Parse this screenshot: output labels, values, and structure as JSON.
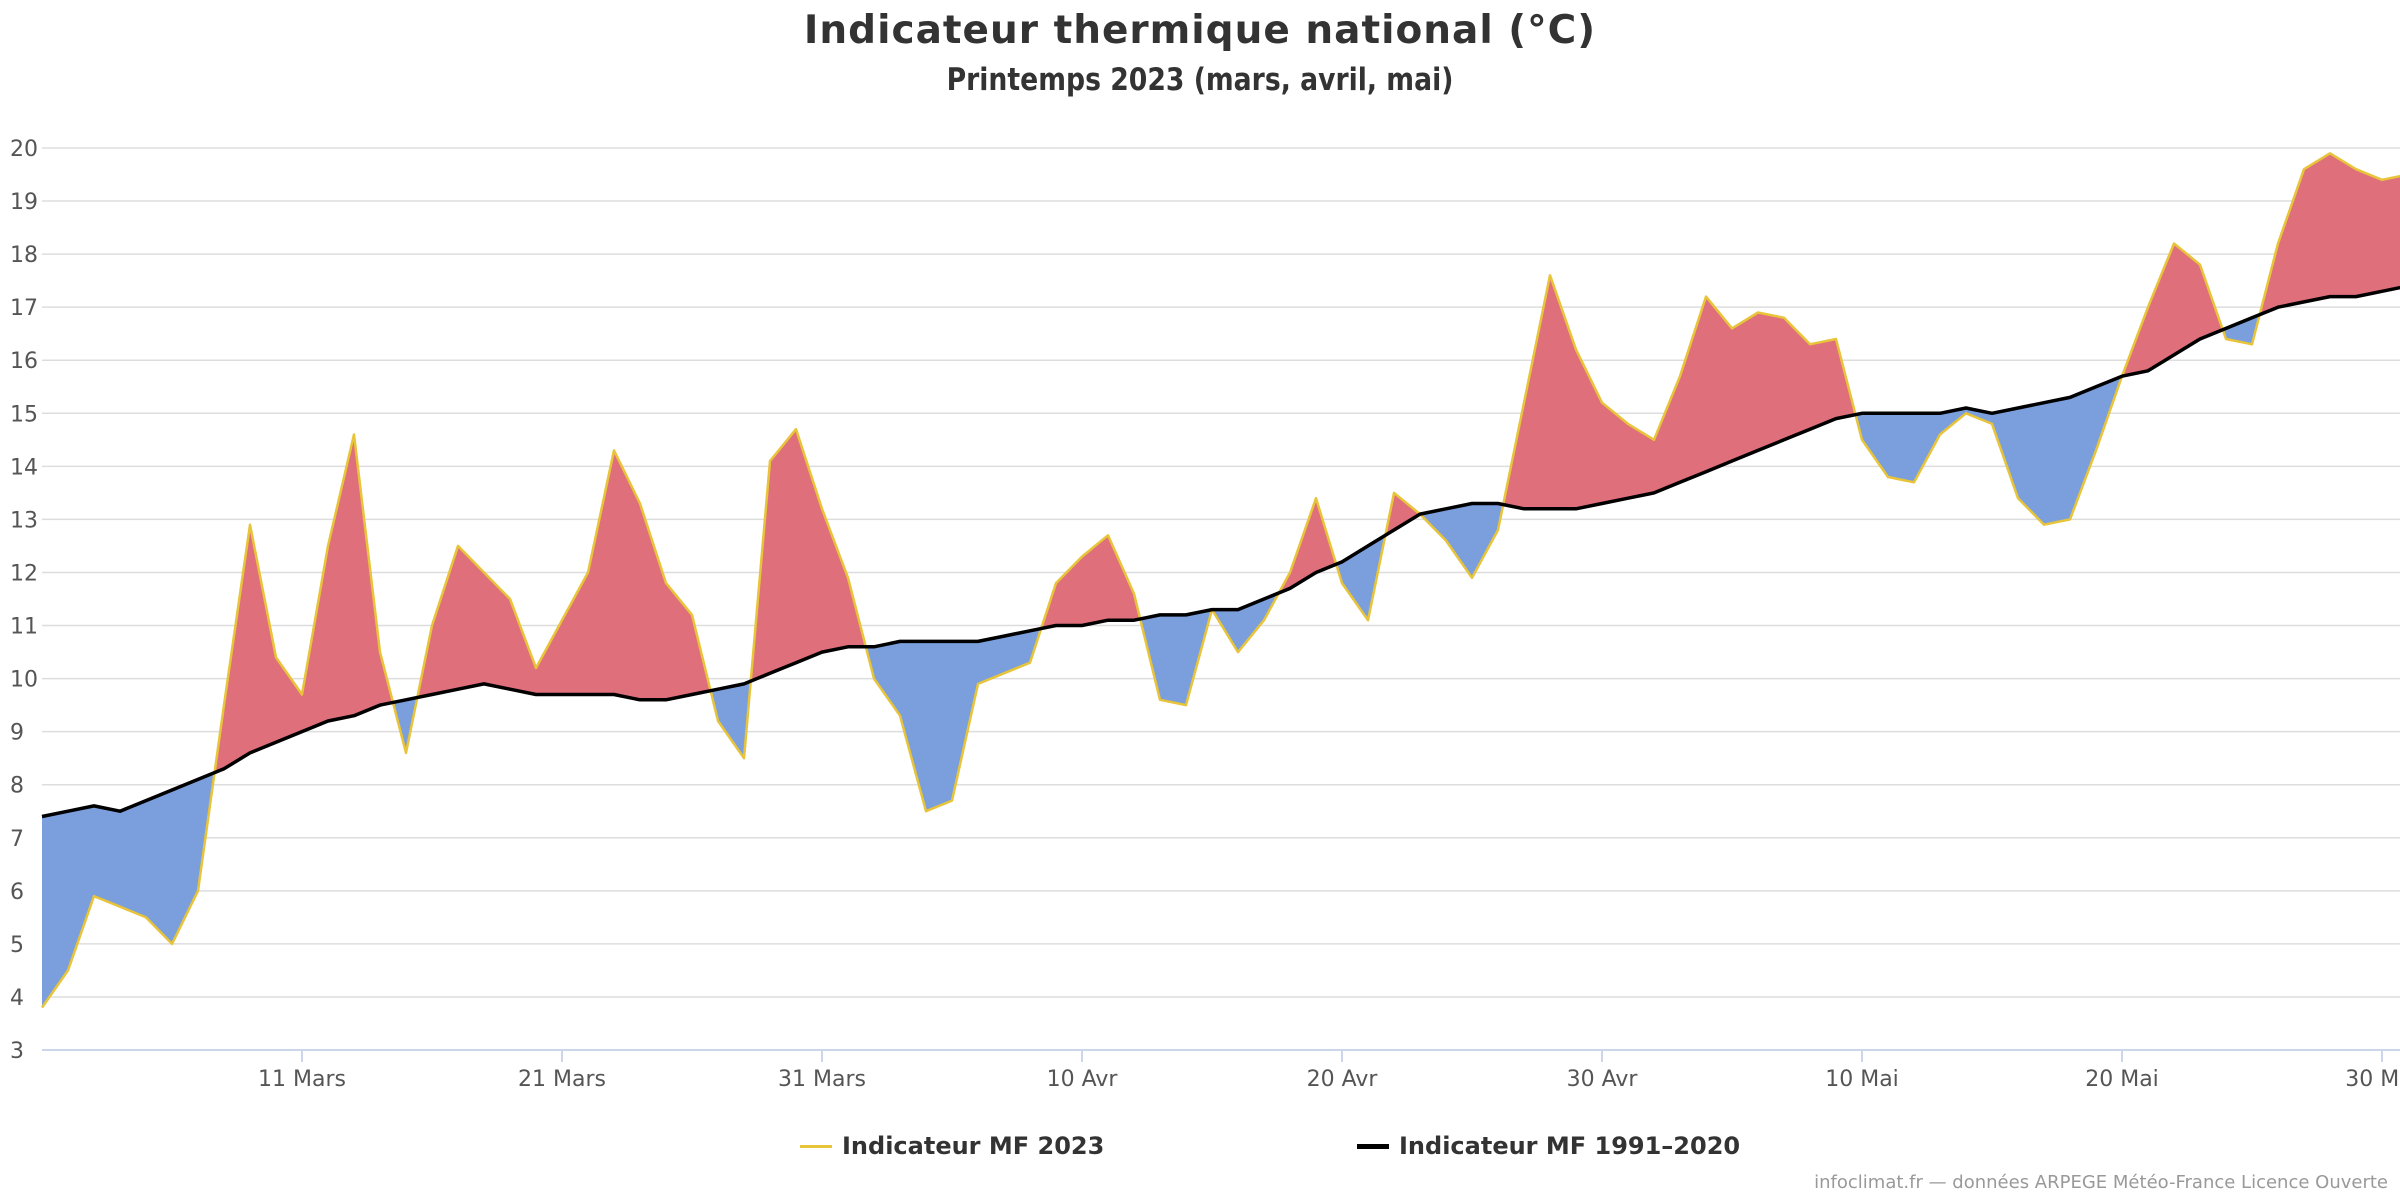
{
  "chart_data": {
    "type": "area",
    "title": "Indicateur thermique national (°C)",
    "subtitle": "Printemps 2023 (mars, avril, mai)",
    "ylim": [
      3,
      20
    ],
    "yticks": [
      3,
      4,
      5,
      6,
      7,
      8,
      9,
      10,
      11,
      12,
      13,
      14,
      15,
      16,
      17,
      18,
      19,
      20
    ],
    "x_start": "1 Mars 2023",
    "xticks": [
      {
        "label": "11 Mars",
        "day": 11
      },
      {
        "label": "21 Mars",
        "day": 21
      },
      {
        "label": "31 Mars",
        "day": 31
      },
      {
        "label": "10 Avr",
        "day": 41
      },
      {
        "label": "20 Avr",
        "day": 51
      },
      {
        "label": "30 Avr",
        "day": 61
      },
      {
        "label": "10 Mai",
        "day": 71
      },
      {
        "label": "20 Mai",
        "day": 81
      },
      {
        "label": "30 Mai",
        "day": 91
      }
    ],
    "grid": true,
    "legend_position": "bottom",
    "series": [
      {
        "name": "Indicateur MF 2023",
        "color": "#e8c43a",
        "values": [
          3.8,
          4.5,
          5.9,
          5.7,
          5.5,
          5.0,
          6.0,
          9.5,
          12.9,
          10.4,
          9.7,
          12.5,
          14.6,
          10.5,
          8.6,
          11.0,
          12.5,
          12.0,
          11.5,
          10.2,
          11.1,
          12.0,
          14.3,
          13.3,
          11.8,
          11.2,
          9.2,
          8.5,
          14.1,
          14.7,
          13.2,
          11.9,
          10.0,
          9.3,
          7.5,
          7.7,
          9.9,
          10.1,
          10.3,
          11.8,
          12.3,
          12.7,
          11.6,
          9.6,
          9.5,
          11.3,
          10.5,
          11.1,
          12.0,
          13.4,
          11.8,
          11.1,
          13.5,
          13.1,
          12.6,
          11.9,
          12.8,
          15.2,
          17.6,
          16.2,
          15.2,
          14.8,
          14.5,
          15.7,
          17.2,
          16.6,
          16.9,
          16.8,
          16.3,
          16.4,
          14.5,
          13.8,
          13.7,
          14.6,
          15.0,
          14.8,
          13.4,
          12.9,
          13.0,
          14.3,
          15.7,
          17.0,
          18.2,
          17.8,
          16.4,
          16.3,
          18.2,
          19.6,
          19.9,
          19.6,
          19.4,
          19.5
        ]
      },
      {
        "name": "Indicateur MF 1991-2020",
        "color": "#000000",
        "values": [
          7.4,
          7.5,
          7.6,
          7.5,
          7.7,
          7.9,
          8.1,
          8.3,
          8.6,
          8.8,
          9.0,
          9.2,
          9.3,
          9.5,
          9.6,
          9.7,
          9.8,
          9.9,
          9.8,
          9.7,
          9.7,
          9.7,
          9.7,
          9.6,
          9.6,
          9.7,
          9.8,
          9.9,
          10.1,
          10.3,
          10.5,
          10.6,
          10.6,
          10.7,
          10.7,
          10.7,
          10.7,
          10.8,
          10.9,
          11.0,
          11.0,
          11.1,
          11.1,
          11.2,
          11.2,
          11.3,
          11.3,
          11.5,
          11.7,
          12.0,
          12.2,
          12.5,
          12.8,
          13.1,
          13.2,
          13.3,
          13.3,
          13.2,
          13.2,
          13.2,
          13.3,
          13.4,
          13.5,
          13.7,
          13.9,
          14.1,
          14.3,
          14.5,
          14.7,
          14.9,
          15.0,
          15.0,
          15.0,
          15.0,
          15.1,
          15.0,
          15.1,
          15.2,
          15.3,
          15.5,
          15.7,
          15.8,
          16.1,
          16.4,
          16.6,
          16.8,
          17.0,
          17.1,
          17.2,
          17.2,
          17.3,
          17.4
        ]
      }
    ],
    "fill_above_color": "#df6f7b",
    "fill_below_color": "#7a9fdc"
  },
  "legend": {
    "items": [
      {
        "label": "Indicateur MF 2023",
        "color": "#e8c43a"
      },
      {
        "label": "Indicateur MF 1991–2020",
        "color": "#000000"
      }
    ]
  },
  "credits": "infoclimat.fr — données ARPEGE Météo-France Licence Ouverte"
}
